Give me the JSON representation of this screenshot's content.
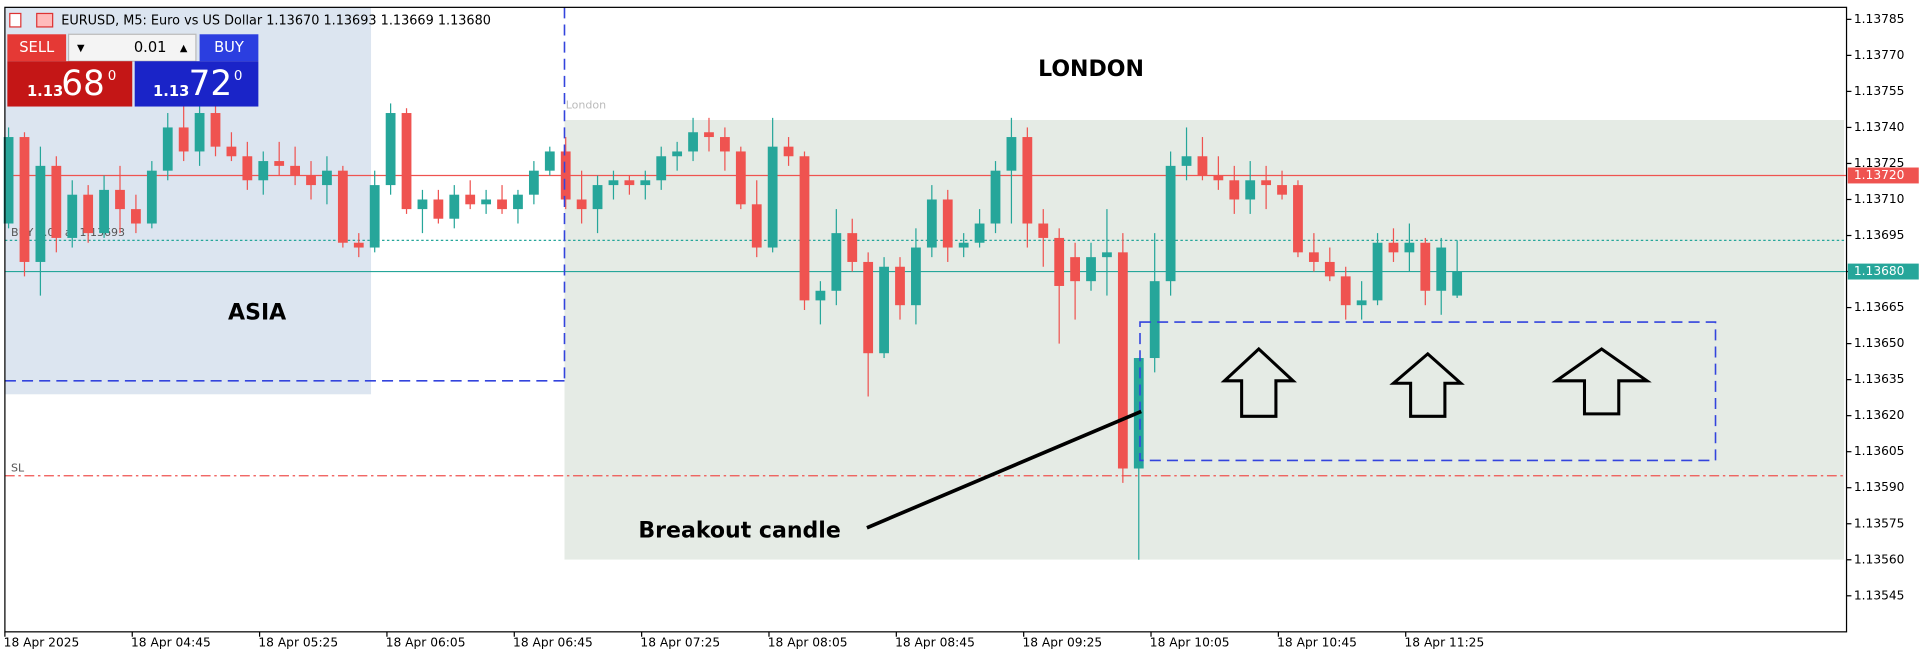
{
  "chart_data": {
    "type": "candlestick",
    "header": "EURUSD, M5:  Euro vs US Dollar  1.13670 1.13693 1.13669 1.13680",
    "up_color": "#26a69a",
    "down_color": "#ef5350",
    "x": [
      "18 Apr 2025",
      null,
      null,
      null,
      null,
      null,
      null,
      null,
      "18 Apr 04:45",
      null,
      null,
      null,
      null,
      null,
      null,
      null,
      "18 Apr 05:25",
      null,
      null,
      null,
      null,
      null,
      null,
      null,
      "18 Apr 06:05",
      null,
      null,
      null,
      null,
      null,
      null,
      null,
      "18 Apr 06:45",
      null,
      null,
      null,
      null,
      null,
      null,
      null,
      "18 Apr 07:25",
      null,
      null,
      null,
      null,
      null,
      null,
      null,
      "18 Apr 08:05",
      null,
      null,
      null,
      null,
      null,
      null,
      null,
      "18 Apr 08:45",
      null,
      null,
      null,
      null,
      null,
      null,
      null,
      "18 Apr 09:25",
      null,
      null,
      null,
      null,
      null,
      null,
      null,
      "18 Apr 10:05",
      null,
      null,
      null,
      null,
      null,
      null,
      null,
      "18 Apr 10:45",
      null,
      null,
      null,
      null,
      null,
      null,
      null,
      "18 Apr 11:25",
      null,
      null,
      null
    ],
    "open": [
      1.137,
      1.13736,
      1.13684,
      1.13724,
      1.13694,
      1.13712,
      1.13696,
      1.13714,
      1.13706,
      1.137,
      1.13722,
      1.1374,
      1.1373,
      1.13746,
      1.13732,
      1.13728,
      1.13718,
      1.13726,
      1.13724,
      1.1372,
      1.13716,
      1.13722,
      1.13692,
      1.1369,
      1.13716,
      1.13746,
      1.13706,
      1.1371,
      1.13702,
      1.13712,
      1.13708,
      1.1371,
      1.13706,
      1.13712,
      1.13722,
      1.1373,
      1.1371,
      1.13706,
      1.13716,
      1.13718,
      1.13716,
      1.13718,
      1.13728,
      1.1373,
      1.13738,
      1.13736,
      1.1373,
      1.13708,
      1.1369,
      1.13732,
      1.13728,
      1.13668,
      1.13672,
      1.13696,
      1.13684,
      1.13646,
      1.13682,
      1.13666,
      1.1369,
      1.1371,
      1.1369,
      1.13692,
      1.137,
      1.13722,
      1.13736,
      1.137,
      1.13694,
      1.13686,
      1.13676,
      1.13686,
      1.13688,
      1.13598,
      1.13644,
      1.13676,
      1.13724,
      1.13728,
      1.1372,
      1.13718,
      1.1371,
      1.13718,
      1.13716,
      1.13716,
      1.13688,
      1.13684,
      1.13678,
      1.13666,
      1.13668,
      1.13692,
      1.13688,
      1.13692,
      1.13672,
      1.1367
    ],
    "high": [
      1.1374,
      1.13738,
      1.13732,
      1.13728,
      1.13718,
      1.13716,
      1.1372,
      1.13724,
      1.13712,
      1.13726,
      1.13746,
      1.1375,
      1.1375,
      1.13752,
      1.13738,
      1.13734,
      1.1373,
      1.13734,
      1.13732,
      1.13726,
      1.13728,
      1.13724,
      1.13696,
      1.13722,
      1.1375,
      1.13748,
      1.13714,
      1.13714,
      1.13716,
      1.13718,
      1.13714,
      1.13716,
      1.13714,
      1.13726,
      1.13732,
      1.13736,
      1.13722,
      1.1372,
      1.13722,
      1.1372,
      1.13722,
      1.13732,
      1.13734,
      1.13744,
      1.13744,
      1.1374,
      1.13732,
      1.13718,
      1.13744,
      1.13736,
      1.1373,
      1.13676,
      1.13706,
      1.13702,
      1.13688,
      1.13686,
      1.13686,
      1.13698,
      1.13716,
      1.13714,
      1.13696,
      1.13706,
      1.13726,
      1.13744,
      1.1374,
      1.13706,
      1.13698,
      1.13692,
      1.13692,
      1.13706,
      1.13696,
      1.13644,
      1.13696,
      1.1373,
      1.1374,
      1.13736,
      1.13728,
      1.13724,
      1.13726,
      1.13724,
      1.13722,
      1.13718,
      1.13696,
      1.1369,
      1.13682,
      1.13676,
      1.13696,
      1.13698,
      1.137,
      1.13694,
      1.13694,
      1.13693
    ],
    "low": [
      1.13698,
      1.13678,
      1.1367,
      1.13688,
      1.1369,
      1.13692,
      1.13694,
      1.13696,
      1.13696,
      1.13698,
      1.13718,
      1.13726,
      1.13724,
      1.13728,
      1.13726,
      1.13714,
      1.13712,
      1.1372,
      1.13716,
      1.1371,
      1.13708,
      1.1369,
      1.13686,
      1.13688,
      1.13712,
      1.13704,
      1.13696,
      1.137,
      1.13698,
      1.13706,
      1.13704,
      1.13704,
      1.137,
      1.13708,
      1.1372,
      1.13706,
      1.137,
      1.13696,
      1.1371,
      1.13712,
      1.1371,
      1.13714,
      1.13722,
      1.13726,
      1.1373,
      1.13722,
      1.13706,
      1.13686,
      1.13688,
      1.13724,
      1.13664,
      1.13658,
      1.13666,
      1.1368,
      1.13628,
      1.13644,
      1.1366,
      1.13658,
      1.13686,
      1.13684,
      1.13686,
      1.1369,
      1.13696,
      1.137,
      1.1369,
      1.13682,
      1.1365,
      1.1366,
      1.13672,
      1.1367,
      1.13592,
      1.1356,
      1.13638,
      1.1367,
      1.13718,
      1.13718,
      1.13714,
      1.13704,
      1.13704,
      1.13706,
      1.1371,
      1.13686,
      1.1368,
      1.13676,
      1.1366,
      1.1366,
      1.13666,
      1.13684,
      1.1368,
      1.13666,
      1.13662,
      1.13669
    ],
    "close": [
      1.13736,
      1.13684,
      1.13724,
      1.13694,
      1.13712,
      1.13696,
      1.13714,
      1.13706,
      1.137,
      1.13722,
      1.1374,
      1.1373,
      1.13746,
      1.13732,
      1.13728,
      1.13718,
      1.13726,
      1.13724,
      1.1372,
      1.13716,
      1.13722,
      1.13692,
      1.1369,
      1.13716,
      1.13746,
      1.13706,
      1.1371,
      1.13702,
      1.13712,
      1.13708,
      1.1371,
      1.13706,
      1.13712,
      1.13722,
      1.1373,
      1.1371,
      1.13706,
      1.13716,
      1.13718,
      1.13716,
      1.13718,
      1.13728,
      1.1373,
      1.13738,
      1.13736,
      1.1373,
      1.13708,
      1.1369,
      1.13732,
      1.13728,
      1.13668,
      1.13672,
      1.13696,
      1.13684,
      1.13646,
      1.13682,
      1.13666,
      1.1369,
      1.1371,
      1.1369,
      1.13692,
      1.137,
      1.13722,
      1.13736,
      1.137,
      1.13694,
      1.13674,
      1.13676,
      1.13686,
      1.13688,
      1.13598,
      1.13644,
      1.13676,
      1.13724,
      1.13728,
      1.1372,
      1.13718,
      1.1371,
      1.13718,
      1.13716,
      1.13712,
      1.13688,
      1.13684,
      1.13678,
      1.13666,
      1.13668,
      1.13692,
      1.13688,
      1.13692,
      1.13672,
      1.1369,
      1.1368
    ],
    "ylim": [
      1.1353,
      1.1379
    ],
    "yticks": [
      1.13785,
      {
        "value": 1.1377,
        "label": "1.13770"
      },
      1.13755,
      {
        "value": 1.1374,
        "label": "1.13740"
      },
      1.13725,
      {
        "value": 1.1371,
        "label": "1.13710"
      },
      1.13695,
      {
        "value": 1.1368,
        "label": "1.13680"
      },
      1.13665,
      {
        "value": 1.1365,
        "label": "1.13650"
      },
      1.13635,
      {
        "value": 1.1362,
        "label": "1.13620"
      },
      1.13605,
      {
        "value": 1.1359,
        "label": "1.13590"
      },
      1.13575,
      {
        "value": 1.1356,
        "label": "1.13560"
      },
      1.13545
    ],
    "price_lines": [
      {
        "value": 1.1372,
        "label": "1.13720",
        "color": "#ef5350"
      },
      {
        "value": 1.1368,
        "label": "1.13680",
        "color": "#26a69a"
      }
    ],
    "order_lines": [
      {
        "value": 1.13693,
        "label": "BUY 0.01 at 1.13693",
        "color": "#26a69a"
      },
      {
        "value": 1.13595,
        "label": "SL",
        "color": "#ef5350"
      }
    ],
    "annotations": [
      "ASIA",
      "LONDON",
      "London",
      "Breakout candle"
    ],
    "trade_panel": {
      "sell": "SELL",
      "buy": "BUY",
      "volume": "0.01",
      "bid": [
        "1.13",
        "68",
        "0"
      ],
      "ask": [
        "1.13",
        "72",
        "0"
      ]
    }
  }
}
